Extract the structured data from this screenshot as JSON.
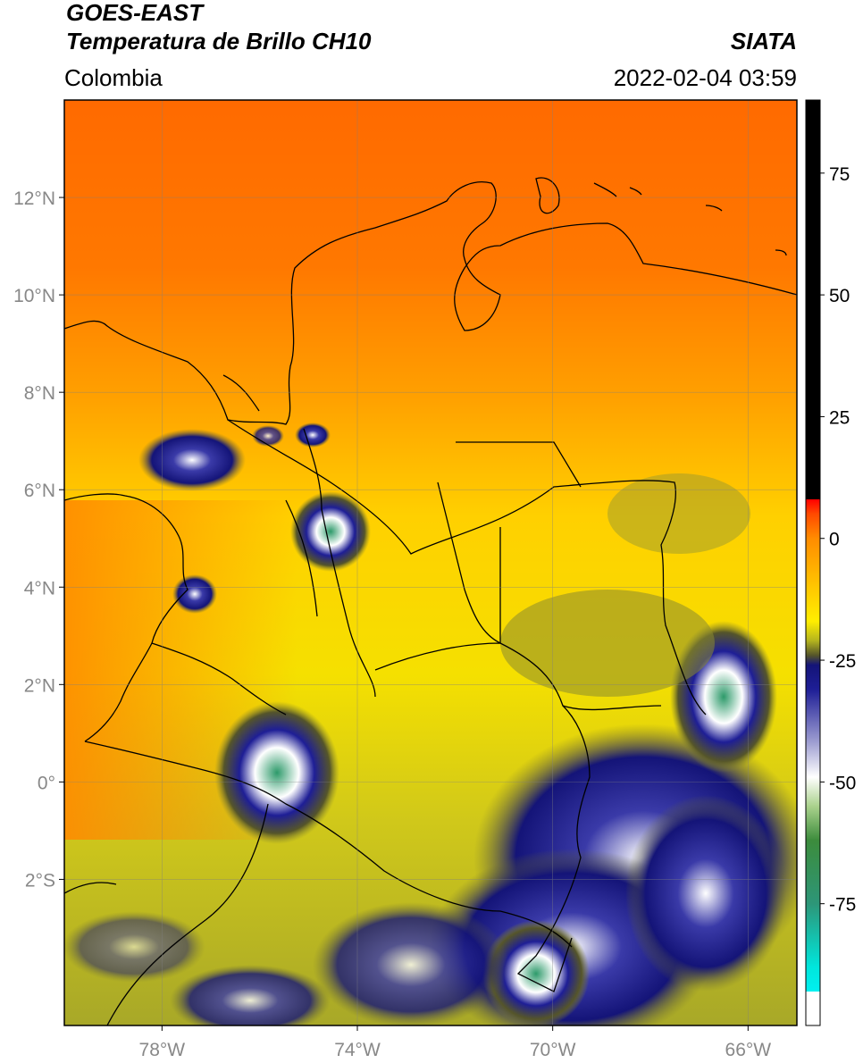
{
  "header": {
    "satellite": "GOES-EAST",
    "product": "Temperatura de Brillo CH10",
    "region": "Colombia",
    "agency": "SIATA",
    "datetime": "2022-02-04 03:59"
  },
  "map": {
    "lon_range": [
      -80,
      -65
    ],
    "lat_range": [
      -5,
      14
    ],
    "lon_ticks": [
      {
        "value": -78,
        "label": "78°W"
      },
      {
        "value": -74,
        "label": "74°W"
      },
      {
        "value": -70,
        "label": "70°W"
      },
      {
        "value": -66,
        "label": "66°W"
      }
    ],
    "lat_ticks": [
      {
        "value": 12,
        "label": "12°N"
      },
      {
        "value": 10,
        "label": "10°N"
      },
      {
        "value": 8,
        "label": "8°N"
      },
      {
        "value": 6,
        "label": "6°N"
      },
      {
        "value": 4,
        "label": "4°N"
      },
      {
        "value": 2,
        "label": "2°N"
      },
      {
        "value": 0,
        "label": "0°"
      },
      {
        "value": -2,
        "label": "2°S"
      }
    ],
    "grid": true
  },
  "colorbar": {
    "range": [
      -100,
      90
    ],
    "ticks": [
      {
        "value": 75,
        "label": "75"
      },
      {
        "value": 50,
        "label": "50"
      },
      {
        "value": 25,
        "label": "25"
      },
      {
        "value": 0,
        "label": "0"
      },
      {
        "value": -25,
        "label": "-25"
      },
      {
        "value": -50,
        "label": "-50"
      },
      {
        "value": -75,
        "label": "-75"
      }
    ],
    "stops": [
      {
        "value": 90,
        "color": "#000000"
      },
      {
        "value": 8,
        "color": "#000000"
      },
      {
        "value": 8,
        "color": "#ff0000"
      },
      {
        "value": 5,
        "color": "#ff4a00"
      },
      {
        "value": 0,
        "color": "#ff8c00"
      },
      {
        "value": -12,
        "color": "#ffd200"
      },
      {
        "value": -17,
        "color": "#ffee00"
      },
      {
        "value": -21,
        "color": "#b4b41e"
      },
      {
        "value": -24,
        "color": "#55552a"
      },
      {
        "value": -26,
        "color": "#141478"
      },
      {
        "value": -31,
        "color": "#1e1e96"
      },
      {
        "value": -42,
        "color": "#a0a0d2"
      },
      {
        "value": -49,
        "color": "#ffffff"
      },
      {
        "value": -55,
        "color": "#aad28c"
      },
      {
        "value": -62,
        "color": "#3c8c3c"
      },
      {
        "value": -75,
        "color": "#2d9678"
      },
      {
        "value": -88,
        "color": "#00e6dc"
      },
      {
        "value": -93,
        "color": "#00f0f0"
      },
      {
        "value": -93,
        "color": "#ffffff"
      },
      {
        "value": -100,
        "color": "#ffffff"
      }
    ]
  }
}
